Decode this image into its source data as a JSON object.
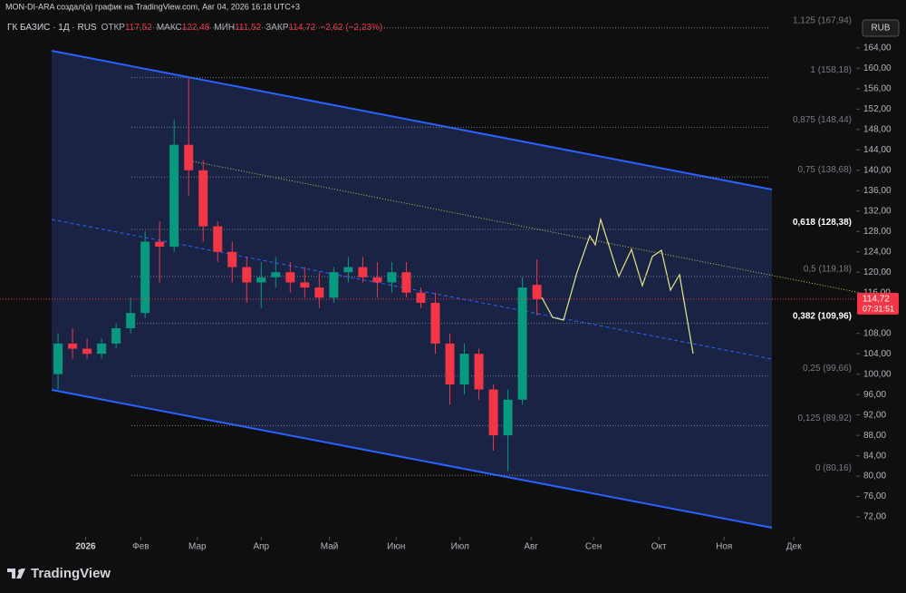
{
  "header": {
    "attribution": "MON-DI-ARA создал(а) график на TradingView.com, Авг 04, 2026 16:18 UTC+3",
    "brand": "TradingView"
  },
  "chart_data": {
    "type": "candlestick",
    "title": "ГК БАЗИС · 1Д · RUS",
    "legend_fields": [
      {
        "name": "ОТКР",
        "text": "117,52"
      },
      {
        "name": "МАКС",
        "text": "122,48"
      },
      {
        "name": "МИН",
        "text": "111,52"
      },
      {
        "name": "ЗАКР",
        "text": "114,72"
      }
    ],
    "change": "−2,62 (−2,23%)",
    "currency": "RUB",
    "categories": [
      null,
      null,
      null,
      null,
      null,
      null,
      null,
      null,
      null,
      null,
      null,
      null,
      null,
      null,
      null,
      null,
      null,
      null,
      null,
      null,
      null,
      null,
      null,
      null,
      null,
      null,
      null,
      null,
      null,
      null,
      null,
      null,
      null,
      null
    ],
    "open": [
      100,
      106,
      105,
      104,
      106,
      109,
      112,
      126,
      125,
      145,
      140,
      129,
      124,
      121,
      118,
      119,
      120,
      118,
      117,
      115,
      120,
      121,
      119,
      118,
      120,
      116,
      114,
      106,
      98,
      104,
      97,
      88,
      95,
      117.52
    ],
    "high": [
      108,
      109,
      107,
      107,
      110,
      115,
      128,
      130,
      150,
      158,
      142,
      130,
      126,
      123,
      122,
      123,
      122,
      121,
      120,
      121,
      123,
      123,
      122,
      122,
      122,
      117,
      116,
      108,
      106,
      105,
      98,
      97,
      119,
      122.48
    ],
    "low": [
      97,
      103,
      103,
      103,
      105,
      108,
      111,
      118,
      124,
      135,
      126,
      122,
      118,
      114,
      113,
      117,
      116,
      115,
      113,
      114,
      118,
      118,
      115,
      116,
      115,
      113,
      104,
      94,
      96,
      95,
      85,
      81,
      94,
      111.52
    ],
    "close": [
      106,
      105,
      104,
      106,
      109,
      112,
      126,
      125,
      145,
      140,
      129,
      124,
      121,
      118,
      119,
      120,
      118,
      117,
      115,
      120,
      121,
      119,
      118,
      120,
      116,
      114,
      106,
      98,
      104,
      97,
      88,
      95,
      117,
      114.72
    ],
    "up_color": "#089981",
    "down_color": "#f23645",
    "xlim": [
      -4,
      55
    ],
    "xticks": [
      {
        "value": 1.9,
        "label": "2026"
      },
      {
        "value": 5.7,
        "label": "Фев"
      },
      {
        "value": 9.6,
        "label": "Мар"
      },
      {
        "value": 14,
        "label": "Апр"
      },
      {
        "value": 18.7,
        "label": "Май"
      },
      {
        "value": 23.3,
        "label": "Июн"
      },
      {
        "value": 27.7,
        "label": "Июл"
      },
      {
        "value": 32.6,
        "label": "Авг"
      },
      {
        "value": 36.9,
        "label": "Сен"
      },
      {
        "value": 41.4,
        "label": "Окт"
      },
      {
        "value": 45.9,
        "label": "Ноя"
      },
      {
        "value": 50.7,
        "label": "Дек"
      }
    ],
    "ylim": [
      68.1,
      170.2
    ],
    "yticks": [
      {
        "value": 164,
        "label": "164,00"
      },
      {
        "value": 160,
        "label": "160,00"
      },
      {
        "value": 156,
        "label": "156,00"
      },
      {
        "value": 152,
        "label": "152,00"
      },
      {
        "value": 148,
        "label": "148,00"
      },
      {
        "value": 144,
        "label": "144,00"
      },
      {
        "value": 140,
        "label": "140,00"
      },
      {
        "value": 136,
        "label": "136,00"
      },
      {
        "value": 132,
        "label": "132,00"
      },
      {
        "value": 128,
        "label": "128,00"
      },
      {
        "value": 124,
        "label": "124,00"
      },
      {
        "value": 120,
        "label": "120,00"
      },
      {
        "value": 116,
        "label": "116,00"
      },
      {
        "value": 108,
        "label": "108,00"
      },
      {
        "value": 104,
        "label": "104,00"
      },
      {
        "value": 100,
        "label": "100,00"
      },
      {
        "value": 96,
        "label": "96,00"
      },
      {
        "value": 92,
        "label": "92,00"
      },
      {
        "value": 88,
        "label": "88,00"
      },
      {
        "value": 84,
        "label": "84,00"
      },
      {
        "value": 80,
        "label": "80,00"
      },
      {
        "value": 76,
        "label": "76,00"
      },
      {
        "value": 72,
        "label": "72,00"
      }
    ],
    "last_price": {
      "value": 114.72,
      "label": "114,72",
      "countdown": "07:31:51"
    },
    "fib_levels": [
      {
        "value": 167.94,
        "label": "1,125 (167,94)"
      },
      {
        "value": 158.18,
        "label": "1 (158,18)"
      },
      {
        "value": 148.44,
        "label": "0,875 (148,44)"
      },
      {
        "value": 138.68,
        "label": "0,75 (138,68)"
      },
      {
        "value": 128.38,
        "label": "0,618 (128,38)",
        "bold": true
      },
      {
        "value": 119.18,
        "label": "0,5 (119,18)"
      },
      {
        "value": 109.96,
        "label": "0,382 (109,96)",
        "bold": true
      },
      {
        "value": 99.66,
        "label": "0,25 (99,66)"
      },
      {
        "value": 89.92,
        "label": "0,125 (89,92)"
      },
      {
        "value": 80.16,
        "label": "0 (80,16)"
      }
    ]
  }
}
